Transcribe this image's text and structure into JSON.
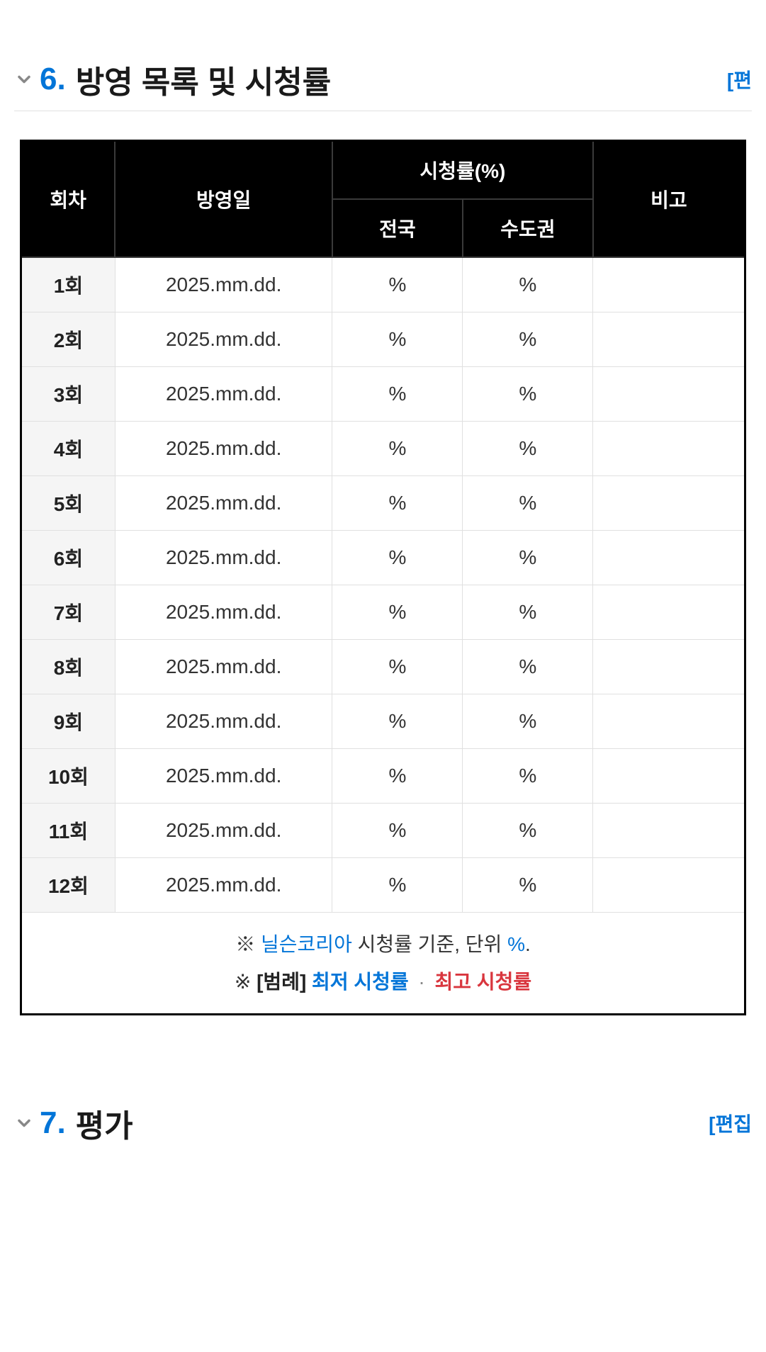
{
  "section6": {
    "number": "6.",
    "title": "방영 목록 및 시청률",
    "edit": "[편"
  },
  "section7": {
    "number": "7.",
    "title": "평가",
    "edit": "[편집"
  },
  "table": {
    "headers": {
      "episode": "회차",
      "airdate": "방영일",
      "ratings": "시청률(%)",
      "national": "전국",
      "metro": "수도권",
      "note": "비고"
    },
    "column_widths": [
      "13%",
      "30%",
      "18%",
      "18%",
      "21%"
    ],
    "header_bg": "#000000",
    "header_text_color": "#ffffff",
    "ep_cell_bg": "#f5f5f5",
    "border_color": "#e0e0e0",
    "rows": [
      {
        "ep": "1회",
        "date": "2025.mm.dd.",
        "national": "%",
        "metro": "%",
        "note": ""
      },
      {
        "ep": "2회",
        "date": "2025.mm.dd.",
        "national": "%",
        "metro": "%",
        "note": ""
      },
      {
        "ep": "3회",
        "date": "2025.mm.dd.",
        "national": "%",
        "metro": "%",
        "note": ""
      },
      {
        "ep": "4회",
        "date": "2025.mm.dd.",
        "national": "%",
        "metro": "%",
        "note": ""
      },
      {
        "ep": "5회",
        "date": "2025.mm.dd.",
        "national": "%",
        "metro": "%",
        "note": ""
      },
      {
        "ep": "6회",
        "date": "2025.mm.dd.",
        "national": "%",
        "metro": "%",
        "note": ""
      },
      {
        "ep": "7회",
        "date": "2025.mm.dd.",
        "national": "%",
        "metro": "%",
        "note": ""
      },
      {
        "ep": "8회",
        "date": "2025.mm.dd.",
        "national": "%",
        "metro": "%",
        "note": ""
      },
      {
        "ep": "9회",
        "date": "2025.mm.dd.",
        "national": "%",
        "metro": "%",
        "note": ""
      },
      {
        "ep": "10회",
        "date": "2025.mm.dd.",
        "national": "%",
        "metro": "%",
        "note": ""
      },
      {
        "ep": "11회",
        "date": "2025.mm.dd.",
        "national": "%",
        "metro": "%",
        "note": ""
      },
      {
        "ep": "12회",
        "date": "2025.mm.dd.",
        "national": "%",
        "metro": "%",
        "note": ""
      }
    ]
  },
  "footnote": {
    "line1_prefix": "※ ",
    "line1_link": "닐슨코리아",
    "line1_mid": " 시청률 기준, 단위 ",
    "line1_unit": "%",
    "line1_suffix": ".",
    "line2_prefix": "※ ",
    "line2_bracket": "[범례]",
    "line2_low": " 최저 시청률",
    "line2_dot": "·",
    "line2_high": "최고 시청률"
  },
  "colors": {
    "accent": "#0275d8",
    "danger": "#d9363e",
    "text": "#1a1a1a"
  }
}
